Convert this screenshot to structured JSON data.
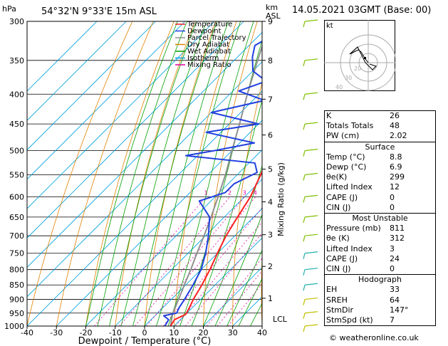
{
  "header": {
    "hpa_label": "hPa",
    "location": "54°32'N  9°33'E  15m  ASL",
    "km_label": "km",
    "asl_label": "ASL",
    "datetime": "14.05.2021  03GMT  (Base: 00)"
  },
  "legend": [
    {
      "name": "Temperature",
      "color": "#ff2020"
    },
    {
      "name": "Dewpoint",
      "color": "#2040e0"
    },
    {
      "name": "Parcel Trajectory",
      "color": "#909090"
    },
    {
      "name": "Dry Adiabat",
      "color": "#e08000"
    },
    {
      "name": "Wet Adiabat",
      "color": "#00a000"
    },
    {
      "name": "Isotherm",
      "color": "#00a0e0"
    },
    {
      "name": "Mixing Ratio",
      "color": "#e000a0"
    }
  ],
  "chart_data": {
    "type": "line",
    "xlabel": "Dewpoint / Temperature (°C)",
    "ylabel_right": "Mixing Ratio (g/kg)",
    "x_ticks": [
      -40,
      -30,
      -20,
      -10,
      0,
      10,
      20,
      30,
      40
    ],
    "pressure_ticks": [
      300,
      350,
      400,
      450,
      500,
      550,
      600,
      650,
      700,
      750,
      800,
      850,
      900,
      950,
      1000
    ],
    "km_ticks": [
      {
        "label": "9",
        "p": 300
      },
      {
        "label": "8",
        "p": 350
      },
      {
        "label": "7",
        "p": 408
      },
      {
        "label": "6",
        "p": 470
      },
      {
        "label": "5",
        "p": 538
      },
      {
        "label": "4",
        "p": 612
      },
      {
        "label": "3",
        "p": 697
      },
      {
        "label": "2",
        "p": 790
      },
      {
        "label": "1",
        "p": 896
      }
    ],
    "lcl_label": "LCL",
    "mixing_ratio_labels": [
      "1",
      "2",
      "3",
      "4",
      "6",
      "8",
      "10",
      "16",
      "20",
      "25"
    ],
    "temperature": [
      {
        "p": 1000,
        "t": 8.8
      },
      {
        "p": 975,
        "t": 8.0
      },
      {
        "p": 955,
        "t": 10.0
      },
      {
        "p": 930,
        "t": 9.0
      },
      {
        "p": 900,
        "t": 7.5
      },
      {
        "p": 850,
        "t": 5.5
      },
      {
        "p": 800,
        "t": 3.0
      },
      {
        "p": 750,
        "t": 0.0
      },
      {
        "p": 700,
        "t": -3.0
      },
      {
        "p": 660,
        "t": -5.0
      },
      {
        "p": 600,
        "t": -8.0
      },
      {
        "p": 550,
        "t": -12.0
      },
      {
        "p": 500,
        "t": -17.0
      },
      {
        "p": 450,
        "t": -22.5
      },
      {
        "p": 400,
        "t": -29.0
      },
      {
        "p": 350,
        "t": -36.0
      },
      {
        "p": 300,
        "t": -44.0
      }
    ],
    "dewpoint": [
      {
        "p": 1000,
        "t": 6.9
      },
      {
        "p": 975,
        "t": 6.0
      },
      {
        "p": 960,
        "t": 3.0
      },
      {
        "p": 950,
        "t": 6.5
      },
      {
        "p": 930,
        "t": 5.5
      },
      {
        "p": 900,
        "t": 4.5
      },
      {
        "p": 850,
        "t": 2.5
      },
      {
        "p": 800,
        "t": 0.0
      },
      {
        "p": 750,
        "t": -4.0
      },
      {
        "p": 700,
        "t": -9.0
      },
      {
        "p": 650,
        "t": -15.0
      },
      {
        "p": 610,
        "t": -24.0
      },
      {
        "p": 590,
        "t": -18.0
      },
      {
        "p": 570,
        "t": -18.0
      },
      {
        "p": 545,
        "t": -14.0
      },
      {
        "p": 525,
        "t": -18.0
      },
      {
        "p": 510,
        "t": -44.0
      },
      {
        "p": 500,
        "t": -36.0
      },
      {
        "p": 485,
        "t": -25.0
      },
      {
        "p": 465,
        "t": -45.0
      },
      {
        "p": 450,
        "t": -30.0
      },
      {
        "p": 430,
        "t": -50.0
      },
      {
        "p": 410,
        "t": -36.0
      },
      {
        "p": 395,
        "t": -48.0
      },
      {
        "p": 380,
        "t": -42.0
      },
      {
        "p": 365,
        "t": -50.0
      },
      {
        "p": 345,
        "t": -55.0
      },
      {
        "p": 330,
        "t": -58.0
      },
      {
        "p": 310,
        "t": -54.0
      },
      {
        "p": 300,
        "t": -58.0
      }
    ],
    "parcel": [
      {
        "p": 1000,
        "t": 8.8
      },
      {
        "p": 975,
        "t": 7.0
      },
      {
        "p": 950,
        "t": 5.2
      },
      {
        "p": 900,
        "t": 2.5
      },
      {
        "p": 850,
        "t": -0.5
      },
      {
        "p": 800,
        "t": -3.5
      },
      {
        "p": 750,
        "t": -7.0
      },
      {
        "p": 700,
        "t": -10.5
      },
      {
        "p": 650,
        "t": -14.5
      },
      {
        "p": 600,
        "t": -19.0
      },
      {
        "p": 550,
        "t": -24.0
      },
      {
        "p": 500,
        "t": -30.0
      },
      {
        "p": 450,
        "t": -36.5
      },
      {
        "p": 400,
        "t": -44.0
      },
      {
        "p": 350,
        "t": -52.0
      },
      {
        "p": 300,
        "t": -61.0
      }
    ]
  },
  "hodograph": {
    "label": "kt",
    "ring_labels": [
      "20",
      "30",
      "40"
    ]
  },
  "indices": [
    {
      "label": "K",
      "value": "26"
    },
    {
      "label": "Totals Totals",
      "value": "48"
    },
    {
      "label": "PW (cm)",
      "value": "2.02"
    }
  ],
  "surface": {
    "title": "Surface",
    "rows": [
      {
        "label": "Temp (°C)",
        "value": "8.8"
      },
      {
        "label": "Dewp (°C)",
        "value": "6.9"
      },
      {
        "label": "θe(K)",
        "value": "299"
      },
      {
        "label": "Lifted Index",
        "value": "12"
      },
      {
        "label": "CAPE (J)",
        "value": "0"
      },
      {
        "label": "CIN (J)",
        "value": "0"
      }
    ]
  },
  "most_unstable": {
    "title": "Most Unstable",
    "rows": [
      {
        "label": "Pressure (mb)",
        "value": "811"
      },
      {
        "label": "θe (K)",
        "value": "312"
      },
      {
        "label": "Lifted Index",
        "value": "3"
      },
      {
        "label": "CAPE (J)",
        "value": "24"
      },
      {
        "label": "CIN (J)",
        "value": "0"
      }
    ]
  },
  "hodograph_table": {
    "title": "Hodograph",
    "rows": [
      {
        "label": "EH",
        "value": "33"
      },
      {
        "label": "SREH",
        "value": "64"
      },
      {
        "label": "StmDir",
        "value": "147°"
      },
      {
        "label": "StmSpd (kt)",
        "value": "7"
      }
    ]
  },
  "copyright": "© weatheronline.co.uk"
}
